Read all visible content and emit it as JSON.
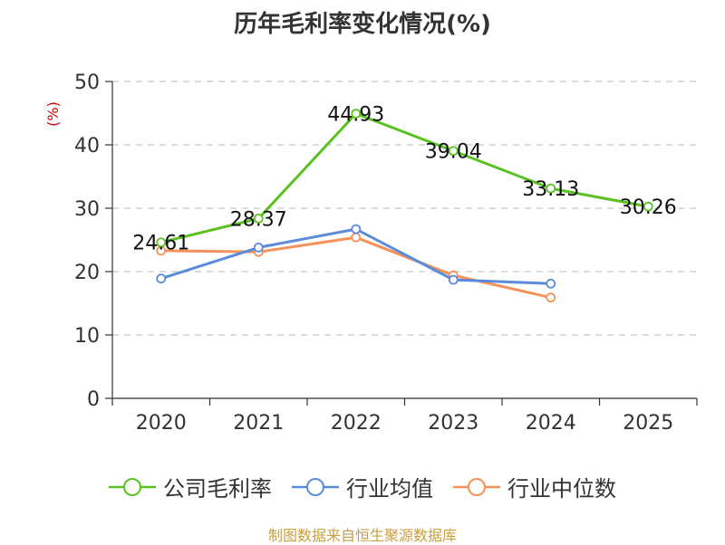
{
  "title": "历年毛利率变化情况(%)",
  "source": "制图数据来自恒生聚源数据库",
  "chart_data": {
    "type": "line",
    "title": "历年毛利率变化情况(%)",
    "ylabel": "(%)",
    "ylim": [
      0,
      50
    ],
    "yticks": [
      0,
      10,
      20,
      30,
      40,
      50
    ],
    "categories": [
      "2020",
      "2021",
      "2022",
      "2023",
      "2024",
      "2025"
    ],
    "grid": true,
    "legend_position": "bottom",
    "series": [
      {
        "name": "公司毛利率",
        "color": "#5ac220",
        "values": [
          24.61,
          28.37,
          44.93,
          39.04,
          33.13,
          30.26
        ],
        "labels": [
          "24.61",
          "28.37",
          "44.93",
          "39.04",
          "33.13",
          "30.26"
        ]
      },
      {
        "name": "行业均值",
        "color": "#5b8bdb",
        "values": [
          18.9,
          23.8,
          26.7,
          18.7,
          18.1,
          null
        ]
      },
      {
        "name": "行业中位数",
        "color": "#f59159",
        "values": [
          23.3,
          23.1,
          25.4,
          19.4,
          15.9,
          null
        ]
      }
    ]
  }
}
